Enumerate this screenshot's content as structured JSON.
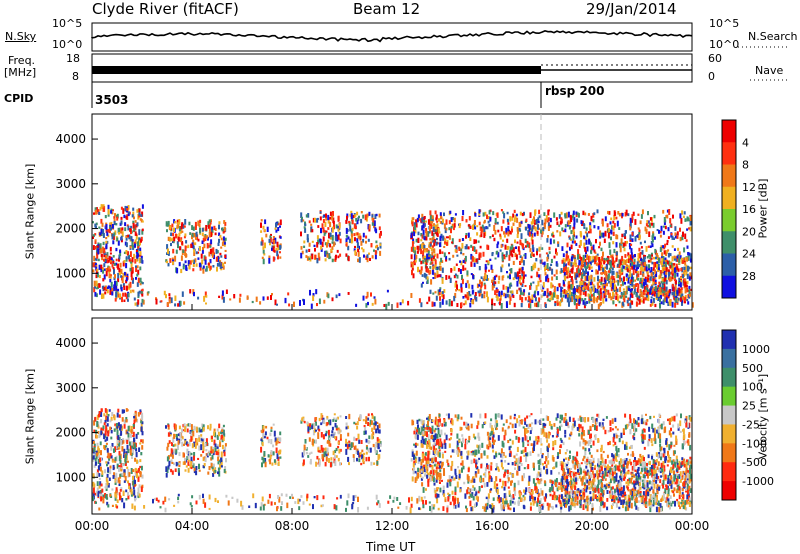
{
  "header": {
    "station": "Clyde River (fitACF)",
    "beam": "Beam 12",
    "date": "29/Jan/2014"
  },
  "panel_labels": {
    "nsky": "N.Sky",
    "freq": "Freq.",
    "freq_unit": "[MHz]",
    "cpid": "CPID",
    "nsearch": "N.Search",
    "nave": "Nave"
  },
  "panel_ticks": {
    "nsky_top": "10^5",
    "nsky_bottom": "10^0",
    "freq_top": "18",
    "freq_bottom": "8",
    "nsearch_top": "10^5",
    "nsearch_bottom": "10^0",
    "nave_top": "60",
    "nave_bottom": "0"
  },
  "cpid_labels": {
    "first": "3503",
    "second": "rbsp 200"
  },
  "chart_data": [
    {
      "type": "heatmap",
      "panel": "power",
      "ylabel": "Slant Range [km]",
      "ylim": [
        180,
        4560
      ],
      "yticks": [
        "1000",
        "2000",
        "3000",
        "4000"
      ],
      "colorbar_label": "Power [dB]",
      "colorbar_ticks": [
        "4",
        "8",
        "12",
        "16",
        "20",
        "24",
        "28"
      ],
      "colorbar_range": [
        0,
        32
      ],
      "colors": [
        "#1010e0",
        "#2c5fa8",
        "#3f8f6a",
        "#7acc2e",
        "#f0b020",
        "#f07818",
        "#ff3010",
        "#ee0000"
      ],
      "note_cpid_change_time": 18.0
    },
    {
      "type": "heatmap",
      "panel": "velocity",
      "ylabel": "Slant Range [km]",
      "ylim": [
        180,
        4560
      ],
      "yticks": [
        "1000",
        "2000",
        "3000",
        "4000"
      ],
      "colorbar_label": "Velocity [m s⁻¹]",
      "colorbar_ticks": [
        "1000",
        "500",
        "100",
        "25",
        "-25",
        "-100",
        "-500",
        "-1000"
      ],
      "colors": [
        "#2030b0",
        "#3a70a0",
        "#3e8f6a",
        "#6acc30",
        "#c8c8c8",
        "#f0b030",
        "#f07818",
        "#ff2a10",
        "#ee0000"
      ]
    }
  ],
  "time_axis": {
    "xlabel": "Time UT",
    "ticks": [
      "00:00",
      "04:00",
      "08:00",
      "12:00",
      "16:00",
      "20:00",
      "00:00"
    ],
    "hours": [
      0,
      4,
      8,
      12,
      16,
      20,
      24
    ]
  }
}
